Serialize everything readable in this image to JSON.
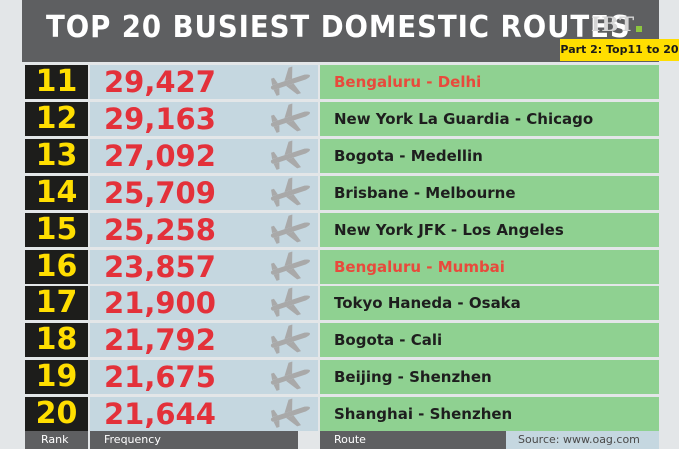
{
  "header": {
    "title": "TOP 20 BUSIEST DOMESTIC ROUTES",
    "logo": "IBT",
    "part_label": "Part 2: Top11 to 20"
  },
  "footer": {
    "rank_label": "Rank",
    "frequency_label": "Frequency",
    "route_label": "Route",
    "source": "Source: www.oag.com"
  },
  "colors": {
    "header_bg": "#5e5f61",
    "rank_bg": "#1d1d1b",
    "rank_text": "#ffde00",
    "frequency_bg": "#c5d7e0",
    "frequency_text": "#e3313a",
    "route_bg": "#8fd191",
    "route_highlight_text": "#e84a3c",
    "plane_icon": "#a9a9a9"
  },
  "chart_data": {
    "type": "table",
    "columns": [
      "Rank",
      "Frequency",
      "Route"
    ],
    "rows": [
      {
        "rank": "11",
        "frequency": "29,427",
        "route": "Bengaluru - Delhi",
        "highlight": true
      },
      {
        "rank": "12",
        "frequency": "29,163",
        "route": "New York La Guardia - Chicago",
        "highlight": false
      },
      {
        "rank": "13",
        "frequency": "27,092",
        "route": "Bogota - Medellin",
        "highlight": false
      },
      {
        "rank": "14",
        "frequency": "25,709",
        "route": "Brisbane - Melbourne",
        "highlight": false
      },
      {
        "rank": "15",
        "frequency": "25,258",
        "route": "New York JFK - Los Angeles",
        "highlight": false
      },
      {
        "rank": "16",
        "frequency": "23,857",
        "route": "Bengaluru - Mumbai",
        "highlight": true
      },
      {
        "rank": "17",
        "frequency": "21,900",
        "route": "Tokyo Haneda - Osaka",
        "highlight": false
      },
      {
        "rank": "18",
        "frequency": "21,792",
        "route": "Bogota - Cali",
        "highlight": false
      },
      {
        "rank": "19",
        "frequency": "21,675",
        "route": "Beijing - Shenzhen",
        "highlight": false
      },
      {
        "rank": "20",
        "frequency": "21,644",
        "route": "Shanghai - Shenzhen",
        "highlight": false
      }
    ]
  }
}
